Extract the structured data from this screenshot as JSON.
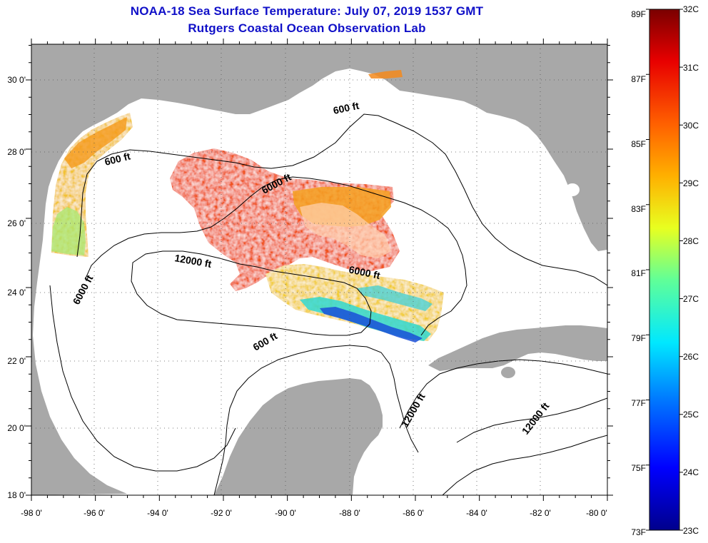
{
  "header": {
    "title": "NOAA-18 Sea Surface Temperature:  July 07, 2019 1537 GMT",
    "subtitle": "Rutgers Coastal Ocean Observation Lab"
  },
  "axes": {
    "lon_labels": [
      "-98 0'",
      "-96 0'",
      "-94 0'",
      "-92 0'",
      "-90 0'",
      "-88 0'",
      "-86 0'",
      "-84 0'",
      "-82 0'",
      "-80 0'"
    ],
    "lat_labels": [
      "30 0'",
      "28 0'",
      "26 0'",
      "24 0'",
      "22 0'",
      "20 0'",
      "18 0'"
    ],
    "lon_range": [
      -98,
      -80
    ],
    "lat_range": [
      18,
      31
    ]
  },
  "contour_labels": [
    "600 ft",
    "600 ft",
    "600 ft",
    "6000 ft",
    "6000 ft",
    "6000 ft",
    "12000 ft",
    "12000 ft",
    "12000 ft"
  ],
  "colorbar": {
    "celsius_labels": [
      "32C",
      "31C",
      "30C",
      "29C",
      "28C",
      "27C",
      "26C",
      "25C",
      "24C",
      "23C"
    ],
    "fahrenheit_labels": [
      "89F",
      "87F",
      "85F",
      "83F",
      "81F",
      "79F",
      "77F",
      "75F",
      "73F"
    ],
    "range_c": [
      23,
      32
    ],
    "range_f": [
      73,
      89
    ]
  },
  "colors": {
    "title": "#1010c8",
    "land": "#a8a8a8",
    "water_no_data": "#ffffff",
    "warm": "#e8381c",
    "cool": "#1a4fd8"
  }
}
